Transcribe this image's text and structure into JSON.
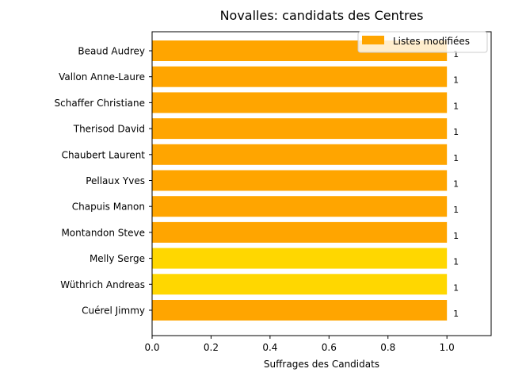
{
  "chart_data": {
    "type": "bar",
    "orientation": "horizontal",
    "title": "Novalles: candidats des Centres",
    "xlabel": "Suffrages des Candidats",
    "ylabel": "",
    "xlim": [
      0,
      1.15
    ],
    "xticks": [
      "0.0",
      "0.2",
      "0.4",
      "0.6",
      "0.8",
      "1.0"
    ],
    "categories": [
      "Beaud Audrey",
      "Vallon Anne-Laure",
      "Schaffer Christiane",
      "Therisod David",
      "Chaubert Laurent",
      "Pellaux Yves",
      "Chapuis Manon",
      "Montandon Steve",
      "Melly Serge",
      "Wüthrich Andreas",
      "Cuérel Jimmy"
    ],
    "values": [
      1,
      1,
      1,
      1,
      1,
      1,
      1,
      1,
      1,
      1,
      1
    ],
    "data_labels": [
      "1",
      "1",
      "1",
      "1",
      "1",
      "1",
      "1",
      "1",
      "1",
      "1",
      "1"
    ],
    "bar_colors": [
      "#ffa500",
      "#ffa500",
      "#ffa500",
      "#ffa500",
      "#ffa500",
      "#ffa500",
      "#ffa500",
      "#ffa500",
      "#ffd700",
      "#ffd700",
      "#ffa500"
    ],
    "legend": {
      "placement": "top-right",
      "entries": [
        {
          "label": "Listes modifiées",
          "color": "#ffa500"
        }
      ]
    },
    "grid": false
  }
}
